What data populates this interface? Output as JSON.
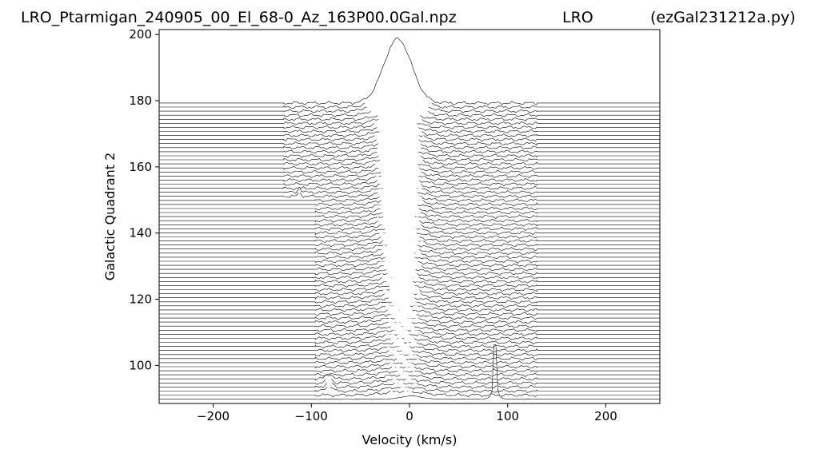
{
  "header": {
    "filename": "LRO_Ptarmigan_240905_00_El_68-0_Az_163P00.0Gal.npz",
    "station": "LRO",
    "program": "(ezGal231212a.py)"
  },
  "chart_data": {
    "type": "line",
    "title": "",
    "xlabel": "Velocity (km/s)",
    "ylabel": "Galactic Quadrant 2",
    "xlim": [
      -255,
      255
    ],
    "ylim": [
      88.5,
      201.5
    ],
    "xticks": [
      -200,
      -100,
      0,
      100,
      200
    ],
    "yticks": [
      100,
      120,
      140,
      160,
      180,
      200
    ],
    "grid": false,
    "legend": "none",
    "line_color": "#000000",
    "stacked_spectra": {
      "count": 74,
      "baseline_first": 89.8,
      "baseline_last": 179.3,
      "uniform_velocity_window_lower_rows": [
        -96,
        130
      ],
      "uniform_velocity_window_upper_rows": [
        -128,
        130
      ],
      "upper_rows_start_baseline": 150.6,
      "flat_extension_outside_window": true
    },
    "features": {
      "main_peak_velocity": 0,
      "main_peak_top": 199.0,
      "narrow_spike_high_velocity": 87,
      "narrow_spike_high_top": 110,
      "narrow_spike_low_velocity": -112,
      "narrow_spike_low_range": [
        146,
        152
      ]
    }
  }
}
